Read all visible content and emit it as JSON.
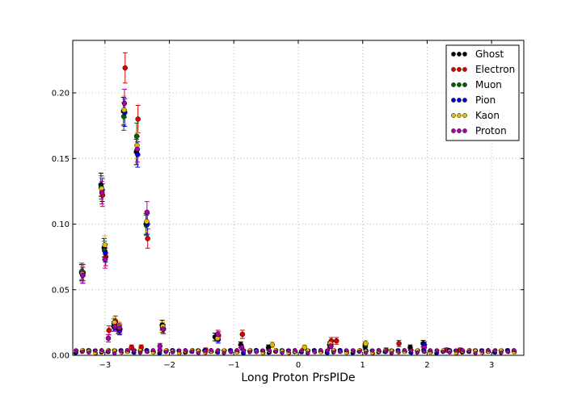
{
  "chart_data": {
    "type": "scatter",
    "title": "",
    "xlabel": "Long Proton PrsPIDe",
    "ylabel": "",
    "xlim": [
      -3.5,
      3.5
    ],
    "ylim": [
      0.0,
      0.24
    ],
    "x_ticks": [
      -3,
      -2,
      -1,
      0,
      1,
      2,
      3
    ],
    "x_tick_labels": [
      "−3",
      "−2",
      "−1",
      "0",
      "1",
      "2",
      "3"
    ],
    "y_ticks": [
      0.0,
      0.05,
      0.1,
      0.15,
      0.2
    ],
    "y_tick_labels": [
      "0.00",
      "0.05",
      "0.10",
      "0.15",
      "0.20"
    ],
    "grid": true,
    "legend_position": "top-right",
    "error_bars": true,
    "series": [
      {
        "name": "Ghost",
        "color": "#000000",
        "points": [
          [
            -3.35,
            0.063
          ],
          [
            -3.05,
            0.13
          ],
          [
            -3.0,
            0.082
          ],
          [
            -2.85,
            0.022
          ],
          [
            -2.78,
            0.02
          ],
          [
            -2.7,
            0.186
          ],
          [
            -2.5,
            0.155
          ],
          [
            -2.35,
            0.1
          ],
          [
            -2.1,
            0.023
          ],
          [
            -1.28,
            0.014
          ],
          [
            -0.88,
            0.008
          ],
          [
            -0.45,
            0.006
          ],
          [
            0.5,
            0.008
          ],
          [
            1.05,
            0.007
          ],
          [
            1.75,
            0.006
          ],
          [
            1.95,
            0.009
          ]
        ]
      },
      {
        "name": "Electron",
        "color": "#dd0000",
        "points": [
          [
            -3.35,
            0.063
          ],
          [
            -3.05,
            0.122
          ],
          [
            -3.0,
            0.075
          ],
          [
            -2.95,
            0.019
          ],
          [
            -2.85,
            0.026
          ],
          [
            -2.78,
            0.02
          ],
          [
            -2.7,
            0.219
          ],
          [
            -2.5,
            0.18
          ],
          [
            -2.35,
            0.089
          ],
          [
            -2.6,
            0.006
          ],
          [
            -2.45,
            0.006
          ],
          [
            -1.25,
            0.015
          ],
          [
            -0.88,
            0.016
          ],
          [
            -1.45,
            0.004
          ],
          [
            0.5,
            0.011
          ],
          [
            0.58,
            0.011
          ],
          [
            1.55,
            0.009
          ],
          [
            2.5,
            0.004
          ],
          [
            1.35,
            0.004
          ]
        ]
      },
      {
        "name": "Muon",
        "color": "#006400",
        "points": [
          [
            -3.35,
            0.064
          ],
          [
            -3.05,
            0.128
          ],
          [
            -3.0,
            0.08
          ],
          [
            -2.85,
            0.024
          ],
          [
            -2.78,
            0.021
          ],
          [
            -2.7,
            0.182
          ],
          [
            -2.5,
            0.167
          ],
          [
            -2.35,
            0.099
          ],
          [
            -2.1,
            0.021
          ],
          [
            -1.25,
            0.013
          ],
          [
            0.5,
            0.007
          ],
          [
            1.05,
            0.008
          ]
        ]
      },
      {
        "name": "Pion",
        "color": "#0000dd",
        "points": [
          [
            -3.35,
            0.061
          ],
          [
            -3.05,
            0.126
          ],
          [
            -3.0,
            0.078
          ],
          [
            -2.85,
            0.023
          ],
          [
            -2.78,
            0.019
          ],
          [
            -2.7,
            0.185
          ],
          [
            -2.5,
            0.153
          ],
          [
            -2.35,
            0.1
          ],
          [
            -2.1,
            0.02
          ],
          [
            -1.25,
            0.012
          ],
          [
            0.5,
            0.007
          ],
          [
            1.95,
            0.008
          ]
        ]
      },
      {
        "name": "Kaon",
        "color": "#e6b800",
        "points": [
          [
            -3.35,
            0.062
          ],
          [
            -3.05,
            0.127
          ],
          [
            -3.0,
            0.084
          ],
          [
            -2.85,
            0.025
          ],
          [
            -2.78,
            0.022
          ],
          [
            -2.7,
            0.187
          ],
          [
            -2.5,
            0.16
          ],
          [
            -2.35,
            0.102
          ],
          [
            -2.1,
            0.022
          ],
          [
            -1.25,
            0.013
          ],
          [
            -0.4,
            0.008
          ],
          [
            0.1,
            0.006
          ],
          [
            0.5,
            0.009
          ],
          [
            1.05,
            0.009
          ]
        ]
      },
      {
        "name": "Proton",
        "color": "#aa00aa",
        "points": [
          [
            -3.35,
            0.061
          ],
          [
            -3.05,
            0.124
          ],
          [
            -3.0,
            0.073
          ],
          [
            -2.95,
            0.013
          ],
          [
            -2.85,
            0.022
          ],
          [
            -2.78,
            0.021
          ],
          [
            -2.7,
            0.192
          ],
          [
            -2.5,
            0.157
          ],
          [
            -2.35,
            0.109
          ],
          [
            -2.15,
            0.007
          ],
          [
            -2.1,
            0.02
          ],
          [
            -1.25,
            0.016
          ],
          [
            -0.88,
            0.006
          ],
          [
            0.5,
            0.007
          ],
          [
            1.95,
            0.006
          ],
          [
            2.3,
            0.004
          ]
        ]
      }
    ]
  }
}
